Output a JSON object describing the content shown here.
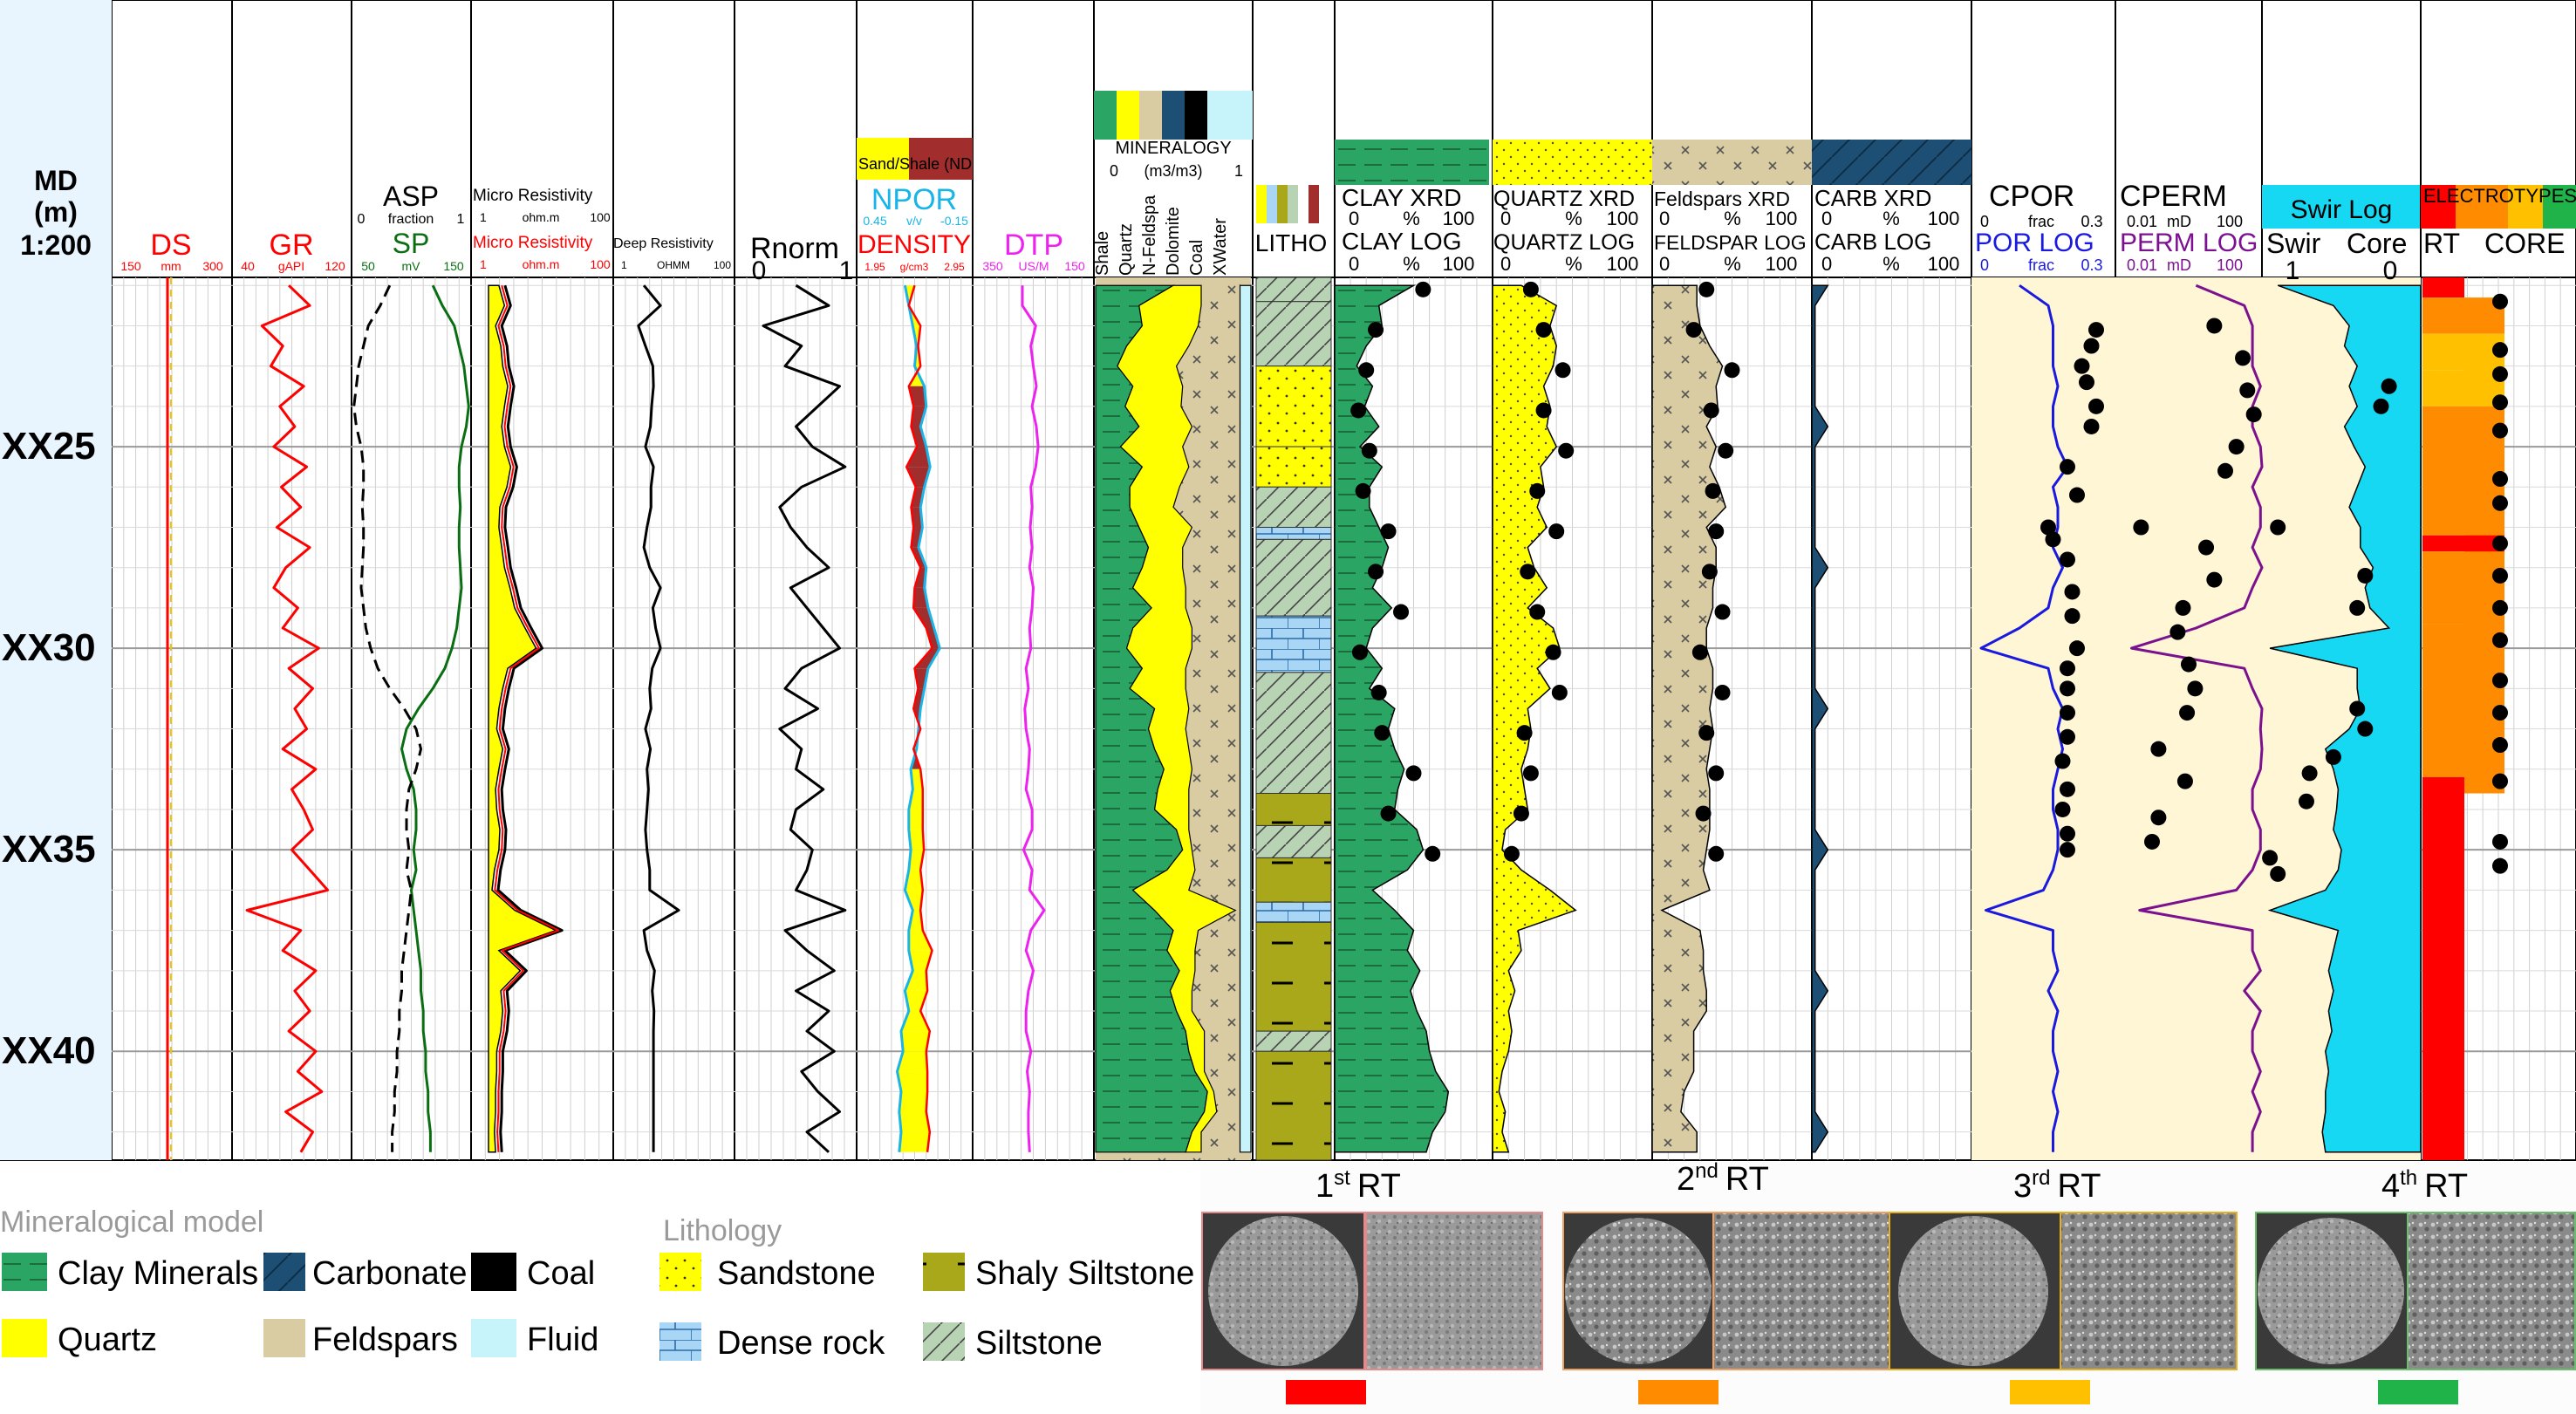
{
  "colors": {
    "red": "#ff0000",
    "green": "#0a6e12",
    "black": "#000000",
    "blue": "#1a1adf",
    "cyan": "#19b4e8",
    "magenta": "#ee22ee",
    "purple": "#7b118f",
    "clay": "#2aa564",
    "quartz": "#ffff00",
    "feldspar": "#d9cba2",
    "carbonate": "#1d4f74",
    "coal": "#000000",
    "fluid": "#c7f3fb",
    "dense": "#a9d6f5",
    "shaly_siltstone": "#a8a81a",
    "siltstone": "#b7d3b4",
    "shale_fill": "#a12d2d",
    "sand_fill": "#ffff00",
    "swir": "#16d8f3",
    "por_bg": "#fff6d6",
    "rt1": "#ff0000",
    "rt2": "#ff8c00",
    "rt3": "#ffc000",
    "rt4": "#1fb34a"
  },
  "header": {
    "md_title": "MD",
    "md_unit": "(m)",
    "md_scale": "1:200"
  },
  "tracks": {
    "ds": {
      "name": "DS",
      "min": "150",
      "unit": "mm",
      "max": "300"
    },
    "gr": {
      "name": "GR",
      "min": "40",
      "unit": "gAPI",
      "max": "120"
    },
    "asp": {
      "name": "ASP",
      "min": "0",
      "unit": "fraction",
      "max": "1"
    },
    "sp": {
      "name": "SP",
      "min": "50",
      "unit": "mV",
      "max": "150"
    },
    "microres1": {
      "name": "Micro Resistivity",
      "min": "1",
      "unit": "ohm.m",
      "max": "100"
    },
    "microres2": {
      "name": "Micro Resistivity",
      "min": "1",
      "unit": "ohm.m",
      "max": "100"
    },
    "deepres": {
      "name": "Deep Resistivity",
      "min": "1",
      "unit": "OHMM",
      "max": "100"
    },
    "rnorm": {
      "name": "Rnorm",
      "min": "0",
      "max": "1"
    },
    "npor": {
      "name": "NPOR",
      "min": "0.45",
      "unit": "v/v",
      "max": "-0.15",
      "fill_label": "Sand/Shale (ND"
    },
    "density": {
      "name": "DENSITY",
      "min": "1.95",
      "unit": "g/cm3",
      "max": "2.95"
    },
    "dtp": {
      "name": "DTP",
      "min": "350",
      "unit": "US/M",
      "max": "150"
    },
    "mineralogy": {
      "name": "MINERALOGY",
      "min": "0",
      "unit": "(m3/m3)",
      "max": "1",
      "columns": [
        "Shale",
        "Quartz",
        "N-Feldspa",
        "Dolomite",
        "Coal",
        "XWater"
      ]
    },
    "litho": {
      "name": "LITHO"
    },
    "clay": {
      "xrd": "CLAY  XRD",
      "log": "CLAY  LOG",
      "min": "0",
      "unit": "%",
      "max": "100"
    },
    "quartz": {
      "xrd": "QUARTZ  XRD",
      "log": "QUARTZ  LOG",
      "min": "0",
      "unit": "%",
      "max": "100"
    },
    "feldspar": {
      "xrd": "Feldspars  XRD",
      "log": "FELDSPAR  LOG",
      "min": "0",
      "unit": "%",
      "max": "100"
    },
    "carb": {
      "xrd": "CARB  XRD",
      "log": "CARB  LOG",
      "min": "0",
      "unit": "%",
      "max": "100"
    },
    "cpor": {
      "core": "CPOR",
      "log": "POR  LOG",
      "min": "0",
      "unit": "frac",
      "max": "0.3"
    },
    "cperm": {
      "core": "CPERM",
      "log": "PERM  LOG",
      "min": "0.01",
      "unit": "mD",
      "max": "100"
    },
    "swir": {
      "title": "Swir  Log",
      "log": "Swir",
      "core": "Core",
      "min": "1",
      "max": "0"
    },
    "rt": {
      "title": "ELECTROTYPES",
      "log": "RT",
      "core": "CORE"
    }
  },
  "depth_labels": [
    "XX25",
    "XX30",
    "XX35",
    "XX40"
  ],
  "legend": {
    "mineral_title": "Mineralogical model",
    "minerals": [
      "Clay Minerals",
      "Carbonate",
      "Coal",
      "Quartz",
      "Feldspars",
      "Fluid"
    ],
    "litho_title": "Lithology",
    "lithos": [
      "Sandstone",
      "Shaly Siltstone",
      "Dense rock",
      "Siltstone"
    ]
  },
  "rock_types": [
    {
      "ordinal": "1",
      "suffix": "st",
      "label": "RT"
    },
    {
      "ordinal": "2",
      "suffix": "nd",
      "label": "RT"
    },
    {
      "ordinal": "3",
      "suffix": "rd",
      "label": "RT"
    },
    {
      "ordinal": "4",
      "suffix": "th",
      "label": "RT"
    }
  ],
  "chart_data": {
    "type": "line",
    "title": "",
    "depth_range": [
      20.8,
      42.7
    ],
    "depth_ticks": [
      25,
      30,
      35,
      40
    ],
    "tick_prefix": "XX",
    "x": [
      21,
      21.5,
      22,
      22.5,
      23,
      23.5,
      24,
      24.5,
      25,
      25.5,
      26,
      26.5,
      27,
      27.5,
      28,
      28.5,
      29,
      29.5,
      30,
      30.5,
      31,
      31.5,
      32,
      32.5,
      33,
      33.5,
      34,
      34.5,
      35,
      35.5,
      36,
      36.5,
      37,
      37.5,
      38,
      38.5,
      39,
      39.5,
      40,
      40.5,
      41,
      41.5,
      42,
      42.5
    ],
    "series": [
      {
        "name": "GR",
        "values": [
          78,
          92,
          60,
          74,
          66,
          88,
          72,
          82,
          68,
          90,
          73,
          86,
          70,
          92,
          76,
          68,
          84,
          74,
          98,
          78,
          94,
          82,
          90,
          74,
          96,
          80,
          88,
          94,
          80,
          92,
          104,
          50,
          86,
          74,
          96,
          82,
          92,
          78,
          96,
          84,
          100,
          76,
          94,
          86
        ]
      },
      {
        "name": "SP",
        "values": [
          118,
          126,
          136,
          140,
          144,
          146,
          148,
          146,
          142,
          140,
          140,
          141,
          140,
          140,
          141,
          142,
          140,
          138,
          134,
          128,
          118,
          106,
          96,
          92,
          96,
          102,
          104,
          104,
          102,
          104,
          100,
          102,
          104,
          106,
          108,
          108,
          110,
          110,
          112,
          112,
          114,
          114,
          116,
          116
        ]
      },
      {
        "name": "Micro Resistivity",
        "values": [
          3,
          3.6,
          2.7,
          3.2,
          3.4,
          4,
          3.6,
          3.3,
          3.6,
          4.4,
          3.9,
          3.1,
          3,
          3.3,
          3.6,
          4.3,
          5,
          7,
          10,
          4,
          3.4,
          3,
          2.8,
          3.4,
          3,
          2.7,
          2.8,
          3.1,
          3,
          2.6,
          2.4,
          5,
          19,
          3,
          6,
          3.2,
          3.4,
          3.2,
          2.8,
          2.8,
          2.7,
          2.7,
          2.6,
          2.7
        ]
      },
      {
        "name": "Deep Resistivity",
        "values": [
          3.2,
          6,
          2.6,
          3.4,
          4.5,
          4.6,
          4.3,
          4.1,
          3.4,
          4.6,
          4.2,
          4.2,
          3.6,
          3.2,
          4,
          6,
          4.5,
          5,
          6,
          4.4,
          4,
          4.2,
          3.4,
          4.1,
          3.6,
          3.8,
          3.6,
          3.4,
          3.6,
          4,
          4,
          12,
          3.2,
          3.6,
          4.8,
          4.4,
          4.7,
          4.6,
          4.6,
          4.6,
          4.6,
          4.6,
          4.6,
          4.6
        ]
      },
      {
        "name": "Rnorm",
        "values": [
          0.5,
          0.8,
          0.2,
          0.55,
          0.4,
          0.9,
          0.7,
          0.5,
          0.65,
          0.95,
          0.55,
          0.35,
          0.45,
          0.6,
          0.8,
          0.45,
          0.6,
          0.75,
          0.9,
          0.55,
          0.4,
          0.7,
          0.35,
          0.55,
          0.5,
          0.75,
          0.5,
          0.45,
          0.65,
          0.6,
          0.5,
          0.95,
          0.4,
          0.6,
          0.85,
          0.5,
          0.8,
          0.6,
          0.85,
          0.55,
          0.7,
          0.9,
          0.6,
          0.8
        ]
      },
      {
        "name": "NPOR",
        "values": [
          0.2,
          0.18,
          0.16,
          0.14,
          0.15,
          0.1,
          0.09,
          0.12,
          0.09,
          0.07,
          0.1,
          0.12,
          0.11,
          0.13,
          0.09,
          0.1,
          0.08,
          0.05,
          0.02,
          0.08,
          0.1,
          0.12,
          0.13,
          0.14,
          0.17,
          0.16,
          0.18,
          0.18,
          0.17,
          0.18,
          0.2,
          0.16,
          0.18,
          0.18,
          0.16,
          0.2,
          0.18,
          0.22,
          0.21,
          0.24,
          0.22,
          0.23,
          0.22,
          0.23
        ]
      },
      {
        "name": "DENSITY",
        "values": [
          2.45,
          2.4,
          2.5,
          2.48,
          2.5,
          2.4,
          2.44,
          2.42,
          2.47,
          2.38,
          2.46,
          2.42,
          2.44,
          2.42,
          2.5,
          2.45,
          2.44,
          2.55,
          2.6,
          2.45,
          2.48,
          2.44,
          2.5,
          2.44,
          2.5,
          2.52,
          2.52,
          2.52,
          2.53,
          2.5,
          2.52,
          2.5,
          2.52,
          2.6,
          2.55,
          2.56,
          2.5,
          2.58,
          2.55,
          2.56,
          2.56,
          2.55,
          2.58,
          2.56
        ]
      },
      {
        "name": "DTP",
        "values": [
          268,
          268,
          246,
          254,
          250,
          245,
          252,
          245,
          242,
          246,
          254,
          252,
          255,
          252,
          256,
          250,
          252,
          256,
          254,
          262,
          258,
          264,
          262,
          256,
          258,
          262,
          252,
          252,
          266,
          252,
          256,
          232,
          254,
          262,
          250,
          258,
          262,
          262,
          254,
          260,
          256,
          258,
          258,
          256
        ]
      },
      {
        "name": "CLAY LOG",
        "values": [
          50,
          28,
          30,
          20,
          14,
          24,
          19,
          28,
          16,
          30,
          22,
          22,
          28,
          34,
          30,
          24,
          36,
          24,
          20,
          30,
          22,
          38,
          34,
          38,
          44,
          40,
          38,
          52,
          56,
          46,
          24,
          38,
          50,
          46,
          54,
          48,
          52,
          58,
          60,
          64,
          72,
          70,
          62,
          58
        ]
      },
      {
        "name": "QUARTZ LOG",
        "values": [
          18,
          40,
          36,
          40,
          38,
          32,
          36,
          34,
          40,
          30,
          32,
          28,
          34,
          22,
          26,
          34,
          22,
          38,
          42,
          28,
          36,
          22,
          24,
          22,
          18,
          20,
          22,
          8,
          6,
          18,
          36,
          52,
          16,
          18,
          10,
          14,
          10,
          12,
          10,
          6,
          4,
          8,
          6,
          10
        ]
      },
      {
        "name": "POR LOG",
        "values": [
          0.1,
          0.16,
          0.17,
          0.17,
          0.17,
          0.18,
          0.17,
          0.17,
          0.18,
          0.2,
          0.17,
          0.18,
          0.18,
          0.17,
          0.19,
          0.17,
          0.16,
          0.1,
          0.02,
          0.16,
          0.17,
          0.19,
          0.18,
          0.19,
          0.18,
          0.17,
          0.17,
          0.18,
          0.18,
          0.17,
          0.15,
          0.03,
          0.17,
          0.17,
          0.18,
          0.16,
          0.18,
          0.17,
          0.17,
          0.18,
          0.17,
          0.18,
          0.17,
          0.17
        ]
      },
      {
        "name": "Swir",
        "values": [
          0.9,
          0.55,
          0.45,
          0.48,
          0.4,
          0.45,
          0.4,
          0.48,
          0.42,
          0.35,
          0.4,
          0.45,
          0.38,
          0.38,
          0.3,
          0.35,
          0.32,
          0.2,
          0.95,
          0.4,
          0.4,
          0.38,
          0.45,
          0.6,
          0.55,
          0.52,
          0.53,
          0.55,
          0.5,
          0.52,
          0.6,
          0.95,
          0.52,
          0.55,
          0.58,
          0.55,
          0.58,
          0.56,
          0.6,
          0.58,
          0.6,
          0.6,
          0.62,
          0.6
        ]
      }
    ],
    "core_points": {
      "cpor": [
        [
          22.1,
          0.26
        ],
        [
          22.5,
          0.25
        ],
        [
          23,
          0.23
        ],
        [
          23.4,
          0.24
        ],
        [
          24,
          0.26
        ],
        [
          24.5,
          0.25
        ],
        [
          25.5,
          0.2
        ],
        [
          26.2,
          0.22
        ],
        [
          27,
          0.16
        ],
        [
          27.3,
          0.17
        ],
        [
          27.8,
          0.2
        ],
        [
          28.6,
          0.21
        ],
        [
          29.2,
          0.21
        ],
        [
          30,
          0.22
        ],
        [
          30.5,
          0.2
        ],
        [
          31,
          0.2
        ],
        [
          31.6,
          0.2
        ],
        [
          32.2,
          0.2
        ],
        [
          32.8,
          0.19
        ],
        [
          33.5,
          0.2
        ],
        [
          34,
          0.19
        ],
        [
          34.6,
          0.2
        ],
        [
          35,
          0.2
        ]
      ],
      "cperm": [
        [
          22,
          5
        ],
        [
          22.8,
          30
        ],
        [
          23.6,
          40
        ],
        [
          24.2,
          60
        ],
        [
          25,
          20
        ],
        [
          25.6,
          10
        ],
        [
          27,
          0.05
        ],
        [
          27.5,
          3
        ],
        [
          28.3,
          5
        ],
        [
          29,
          0.7
        ],
        [
          29.6,
          0.5
        ],
        [
          30.4,
          1
        ],
        [
          31,
          1.5
        ],
        [
          31.6,
          0.9
        ],
        [
          32.5,
          0.15
        ],
        [
          33.3,
          0.8
        ],
        [
          34.2,
          0.15
        ],
        [
          34.8,
          0.1
        ]
      ],
      "swir": [
        [
          27,
          0.9
        ],
        [
          28.2,
          0.35
        ],
        [
          29,
          0.4
        ],
        [
          31.5,
          0.4
        ],
        [
          32,
          0.35
        ],
        [
          32.7,
          0.55
        ],
        [
          33.1,
          0.7
        ],
        [
          33.8,
          0.72
        ],
        [
          35.2,
          0.95
        ],
        [
          35.6,
          0.9
        ],
        [
          24,
          0.25
        ],
        [
          23.5,
          0.2
        ]
      ]
    }
  }
}
